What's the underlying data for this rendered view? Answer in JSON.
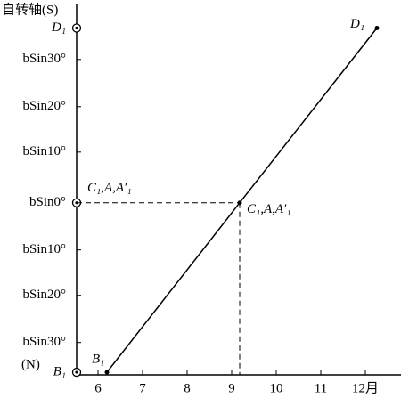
{
  "chart_data": {
    "type": "line",
    "title": "自转轴(S)",
    "bottom_label": "(N)",
    "x": [
      6.2,
      9.18,
      12.26
    ],
    "series": [
      {
        "color": "#000000",
        "values": [
          -0.97,
          0,
          1.0
        ]
      }
    ],
    "xlim": [
      5.52,
      12.8
    ],
    "xticks": [
      6,
      7,
      8,
      9,
      10,
      11,
      {
        "value": 12,
        "label": "12月"
      }
    ],
    "ylim": [
      -0.985,
      1.135
    ],
    "yticks": [
      {
        "value": -0.97,
        "label": "B₁"
      },
      {
        "value": -0.8,
        "label": "bSin30°"
      },
      {
        "value": -0.53,
        "label": "bSin20°"
      },
      {
        "value": -0.27,
        "label": "bSin10°"
      },
      {
        "value": 0,
        "label": "bSin0°"
      },
      {
        "value": 0.29,
        "label": "bSin10°"
      },
      {
        "value": 0.55,
        "label": "bSin20°"
      },
      {
        "value": 0.82,
        "label": "bSin30°"
      },
      {
        "value": 1.0,
        "label": "D₁"
      }
    ],
    "annotations": [
      "B₁",
      "D₁",
      "C₁,A,A′₁",
      "C₁,A,A′₁"
    ]
  }
}
